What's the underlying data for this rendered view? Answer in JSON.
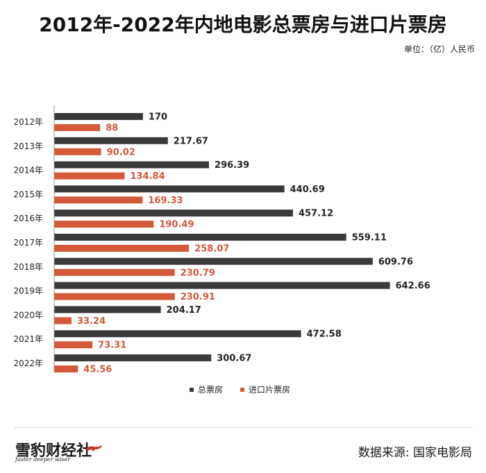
{
  "title": "2012年-2022年内地电影总票房与进口片票房",
  "unit": "单位：（亿）人民币",
  "source": "数据来源: 国家电影局",
  "logo": {
    "main": "雪豹财经社",
    "tagline": "faster deeper wiser"
  },
  "colors": {
    "total": "#3a3a3a",
    "imported": "#d4583a",
    "axis": "#999999"
  },
  "chart_data": {
    "type": "bar",
    "orientation": "horizontal",
    "categories": [
      "2012年",
      "2013年",
      "2014年",
      "2015年",
      "2016年",
      "2017年",
      "2018年",
      "2019年",
      "2020年",
      "2021年",
      "2022年"
    ],
    "series": [
      {
        "name": "总票房",
        "values": [
          170,
          217.67,
          296.39,
          440.69,
          457.12,
          559.11,
          609.76,
          642.66,
          204.17,
          472.58,
          300.67
        ]
      },
      {
        "name": "进口片票房",
        "values": [
          88,
          90.02,
          134.84,
          169.33,
          190.49,
          258.07,
          230.79,
          230.91,
          33.24,
          73.31,
          45.56
        ]
      }
    ],
    "xlim": [
      0,
      700
    ],
    "grid": false,
    "legend": "bottom-center"
  }
}
